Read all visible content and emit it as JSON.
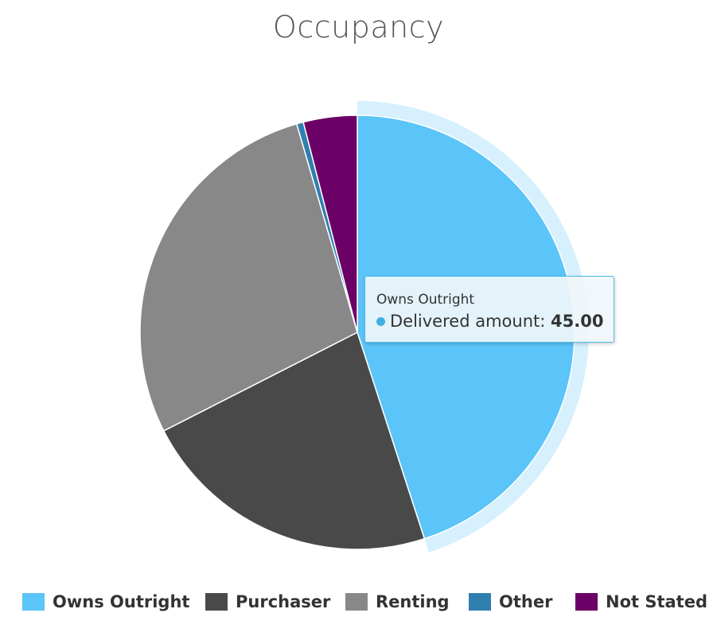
{
  "chart_data": {
    "type": "pie",
    "title": "Occupancy",
    "slices": [
      {
        "name": "Owns Outright",
        "value": 45.0,
        "color": "#5bc4f8"
      },
      {
        "name": "Purchaser",
        "value": 22.5,
        "color": "#494949"
      },
      {
        "name": "Renting",
        "value": 28.0,
        "color": "#888888"
      },
      {
        "name": "Other",
        "value": 0.5,
        "color": "#2f7fb0"
      },
      {
        "name": "Not Stated",
        "value": 4.0,
        "color": "#6b0066"
      }
    ],
    "highlighted_slice": "Owns Outright",
    "legend_position": "bottom"
  },
  "tooltip": {
    "title": "Owns Outright",
    "series_label": "Delivered amount",
    "value": "45.00",
    "dot_color": "#40aee0"
  }
}
